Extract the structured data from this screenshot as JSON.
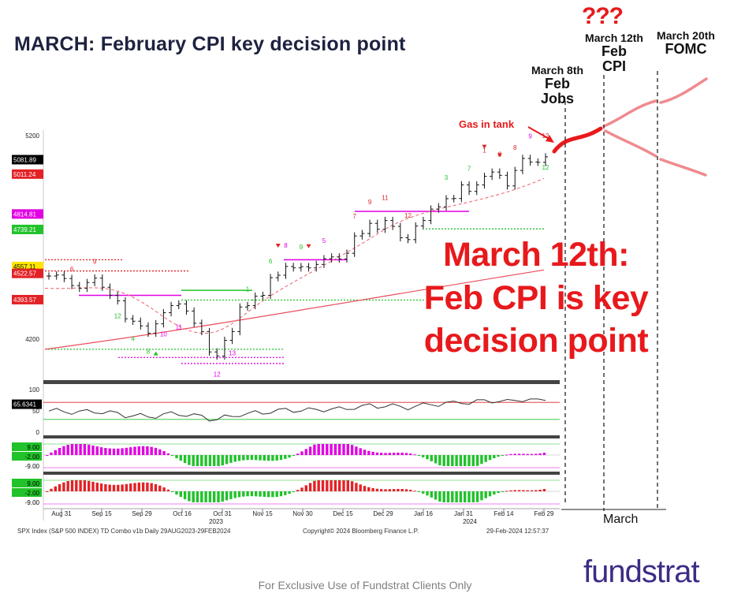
{
  "slide": {
    "title": "MARCH:  February CPI key decision point",
    "disclaimer": "For Exclusive Use of Fundstrat Clients Only",
    "logo": "fundstrat",
    "callout": [
      "March 12th:",
      "Feb CPI is key",
      "decision point"
    ],
    "gas_label": "Gas in tank",
    "question": "???",
    "march_label": "March"
  },
  "events": [
    {
      "date": "March 8th",
      "event_line1": "Feb",
      "event_line2": "Jobs"
    },
    {
      "date": "March 12th",
      "event_line1": "Feb",
      "event_line2": "CPI"
    },
    {
      "date": "March 20th",
      "event_line1": "FOMC",
      "event_line2": ""
    }
  ],
  "footer": {
    "left": "SPX Index (S&P 500 INDEX) TD Combo v1b  Daily 29AUG2023-29FEB2024",
    "middle": "Copyright© 2024 Bloomberg Finance L.P.",
    "right": "29-Feb-2024 12:57:37"
  },
  "colors": {
    "title": "#1e2240",
    "accent_red": "#e8191c",
    "projection": "#e8191c",
    "projection_fade": "#ef8a8f",
    "logo": "#3d2b86",
    "buy_setup": "#21c22a",
    "sell_setup": "#e32226",
    "magenta": "#e200e2",
    "moving_avg_short": "#ef6b77",
    "moving_avg_long": "#e84d5a"
  },
  "chart_data": {
    "type": "line",
    "title": "SPX Index (S&P 500 INDEX) TD Combo v1b",
    "ylim": [
      4050,
      5280
    ],
    "yticks": [
      4200,
      5200
    ],
    "x_tick_labels": [
      "Aug 31",
      "Sep 15",
      "Sep 29",
      "Oct 16",
      "Oct 31",
      "Nov 15",
      "Nov 30",
      "Dec 15",
      "Dec 29",
      "Jan 16",
      "Jan 31",
      "Feb 14",
      "Feb 29"
    ],
    "year_labels": [
      "2023",
      "2024"
    ],
    "price_labels": [
      {
        "value": "5081.89",
        "price": 5082,
        "color": "#000000"
      },
      {
        "value": "5011.24",
        "price": 5011,
        "color": "#e32226"
      },
      {
        "value": "4814.81",
        "price": 4815,
        "color": "#e200e2"
      },
      {
        "value": "4739.21",
        "price": 4739,
        "color": "#21c22a"
      },
      {
        "value": "4557.11",
        "price": 4557,
        "color": "#ffe600"
      },
      {
        "value": "4522.57",
        "price": 4523,
        "color": "#e32226"
      },
      {
        "value": "4393.57",
        "price": 4394,
        "color": "#e32226"
      }
    ],
    "series": [
      {
        "name": "SPX",
        "values": [
          4510,
          4515,
          4498,
          4463,
          4450,
          4478,
          4500,
          4455,
          4415,
          4388,
          4300,
          4288,
          4265,
          4229,
          4275,
          4330,
          4365,
          4373,
          4338,
          4278,
          4237,
          4137,
          4117,
          4194,
          4237,
          4358,
          4365,
          4411,
          4415,
          4502,
          4514,
          4557,
          4550,
          4556,
          4550,
          4567,
          4595,
          4604,
          4594,
          4622,
          4707,
          4719,
          4769,
          4740,
          4783,
          4754,
          4698,
          4689,
          4756,
          4783,
          4839,
          4850,
          4890,
          4891,
          4958,
          4926,
          4958,
          5000,
          5021,
          5005,
          4953,
          5029,
          5088,
          5070,
          5069,
          5096
        ]
      }
    ],
    "rsi": {
      "label": "65.6341",
      "yticks": [
        100,
        50,
        0
      ],
      "value": 65.6341
    },
    "indicator_labels": [
      "9.00",
      "-2.00",
      "-9.00"
    ]
  }
}
